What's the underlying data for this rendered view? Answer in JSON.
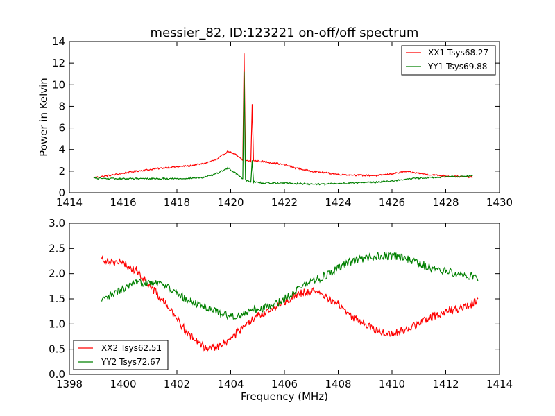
{
  "figure": {
    "title": "messier_82, ID:123221 on-off/off spectrum"
  },
  "chart_data": [
    {
      "type": "line",
      "title": "messier_82, ID:123221 on-off/off spectrum",
      "xlabel": "",
      "ylabel": "Power in Kelvin",
      "xlim": [
        1414,
        1430
      ],
      "ylim": [
        0,
        14
      ],
      "xticks": [
        1414,
        1416,
        1418,
        1420,
        1422,
        1424,
        1426,
        1428,
        1430
      ],
      "yticks": [
        0,
        2,
        4,
        6,
        8,
        10,
        12,
        14
      ],
      "legend_position": "top-right",
      "grid": false,
      "series": [
        {
          "name": "XX1 Tsys68.27",
          "color": "#ff0000",
          "points": [
            [
              1414.9,
              1.4
            ],
            [
              1415.5,
              1.6
            ],
            [
              1416,
              1.8
            ],
            [
              1416.5,
              2.0
            ],
            [
              1417,
              2.15
            ],
            [
              1417.5,
              2.3
            ],
            [
              1418,
              2.4
            ],
            [
              1418.5,
              2.5
            ],
            [
              1419,
              2.7
            ],
            [
              1419.5,
              3.1
            ],
            [
              1419.9,
              3.85
            ],
            [
              1420.2,
              3.5
            ],
            [
              1420.45,
              3.0
            ],
            [
              1420.5,
              12.9
            ],
            [
              1420.55,
              3.0
            ],
            [
              1420.75,
              2.9
            ],
            [
              1420.8,
              8.2
            ],
            [
              1420.85,
              2.95
            ],
            [
              1421.2,
              2.9
            ],
            [
              1421.6,
              2.75
            ],
            [
              1422,
              2.6
            ],
            [
              1422.4,
              2.3
            ],
            [
              1423,
              2.0
            ],
            [
              1423.5,
              1.85
            ],
            [
              1424,
              1.7
            ],
            [
              1424.5,
              1.65
            ],
            [
              1425,
              1.6
            ],
            [
              1425.5,
              1.6
            ],
            [
              1426,
              1.75
            ],
            [
              1426.5,
              1.95
            ],
            [
              1427,
              1.8
            ],
            [
              1427.5,
              1.65
            ],
            [
              1428,
              1.55
            ],
            [
              1428.5,
              1.5
            ],
            [
              1429,
              1.45
            ]
          ]
        },
        {
          "name": "YY1 Tsys69.88",
          "color": "#008000",
          "points": [
            [
              1414.9,
              1.35
            ],
            [
              1415.5,
              1.3
            ],
            [
              1416,
              1.3
            ],
            [
              1416.5,
              1.3
            ],
            [
              1417,
              1.3
            ],
            [
              1417.5,
              1.3
            ],
            [
              1418,
              1.3
            ],
            [
              1418.5,
              1.35
            ],
            [
              1419,
              1.4
            ],
            [
              1419.5,
              1.8
            ],
            [
              1419.9,
              2.3
            ],
            [
              1420.2,
              1.8
            ],
            [
              1420.45,
              1.3
            ],
            [
              1420.5,
              11.2
            ],
            [
              1420.55,
              1.2
            ],
            [
              1420.75,
              1.0
            ],
            [
              1420.8,
              3.0
            ],
            [
              1420.85,
              1.0
            ],
            [
              1421.2,
              0.9
            ],
            [
              1421.6,
              0.9
            ],
            [
              1422,
              0.9
            ],
            [
              1422.5,
              0.85
            ],
            [
              1423,
              0.8
            ],
            [
              1423.5,
              0.8
            ],
            [
              1424,
              0.85
            ],
            [
              1424.5,
              0.9
            ],
            [
              1425,
              0.95
            ],
            [
              1425.5,
              1.0
            ],
            [
              1426,
              1.1
            ],
            [
              1426.5,
              1.25
            ],
            [
              1427,
              1.35
            ],
            [
              1427.5,
              1.4
            ],
            [
              1428,
              1.45
            ],
            [
              1428.5,
              1.5
            ],
            [
              1429,
              1.6
            ]
          ]
        }
      ]
    },
    {
      "type": "line",
      "title": "",
      "xlabel": "Frequency (MHz)",
      "ylabel": "",
      "xlim": [
        1398,
        1414
      ],
      "ylim": [
        0,
        3.0
      ],
      "xticks": [
        1398,
        1400,
        1402,
        1404,
        1406,
        1408,
        1410,
        1412,
        1414
      ],
      "yticks": [
        0.0,
        0.5,
        1.0,
        1.5,
        2.0,
        2.5,
        3.0
      ],
      "legend_position": "bottom-left",
      "grid": false,
      "series": [
        {
          "name": "XX2 Tsys62.51",
          "color": "#ff0000",
          "points": [
            [
              1399.2,
              2.3
            ],
            [
              1399.5,
              2.25
            ],
            [
              1400,
              2.2
            ],
            [
              1400.5,
              2.05
            ],
            [
              1401,
              1.75
            ],
            [
              1401.5,
              1.45
            ],
            [
              1402,
              1.1
            ],
            [
              1402.5,
              0.75
            ],
            [
              1403,
              0.55
            ],
            [
              1403.5,
              0.55
            ],
            [
              1404,
              0.7
            ],
            [
              1404.5,
              0.95
            ],
            [
              1405,
              1.15
            ],
            [
              1405.5,
              1.3
            ],
            [
              1406,
              1.45
            ],
            [
              1406.5,
              1.6
            ],
            [
              1407,
              1.65
            ],
            [
              1407.5,
              1.55
            ],
            [
              1408,
              1.4
            ],
            [
              1408.5,
              1.15
            ],
            [
              1409,
              1.0
            ],
            [
              1409.5,
              0.85
            ],
            [
              1410,
              0.8
            ],
            [
              1410.5,
              0.9
            ],
            [
              1411,
              1.0
            ],
            [
              1411.5,
              1.15
            ],
            [
              1412,
              1.25
            ],
            [
              1412.5,
              1.3
            ],
            [
              1413,
              1.4
            ],
            [
              1413.2,
              1.5
            ]
          ]
        },
        {
          "name": "YY2 Tsys72.67",
          "color": "#008000",
          "points": [
            [
              1399.2,
              1.45
            ],
            [
              1399.5,
              1.55
            ],
            [
              1400,
              1.7
            ],
            [
              1400.5,
              1.8
            ],
            [
              1401,
              1.85
            ],
            [
              1401.5,
              1.8
            ],
            [
              1402,
              1.6
            ],
            [
              1402.5,
              1.45
            ],
            [
              1403,
              1.35
            ],
            [
              1403.5,
              1.25
            ],
            [
              1404,
              1.15
            ],
            [
              1404.5,
              1.2
            ],
            [
              1405,
              1.3
            ],
            [
              1405.5,
              1.35
            ],
            [
              1406,
              1.5
            ],
            [
              1406.5,
              1.7
            ],
            [
              1407,
              1.85
            ],
            [
              1407.5,
              1.95
            ],
            [
              1408,
              2.1
            ],
            [
              1408.5,
              2.25
            ],
            [
              1409,
              2.3
            ],
            [
              1409.5,
              2.35
            ],
            [
              1410,
              2.35
            ],
            [
              1410.5,
              2.3
            ],
            [
              1411,
              2.2
            ],
            [
              1411.5,
              2.1
            ],
            [
              1412,
              2.05
            ],
            [
              1412.5,
              2.0
            ],
            [
              1413,
              1.95
            ],
            [
              1413.2,
              1.85
            ]
          ]
        }
      ]
    }
  ]
}
